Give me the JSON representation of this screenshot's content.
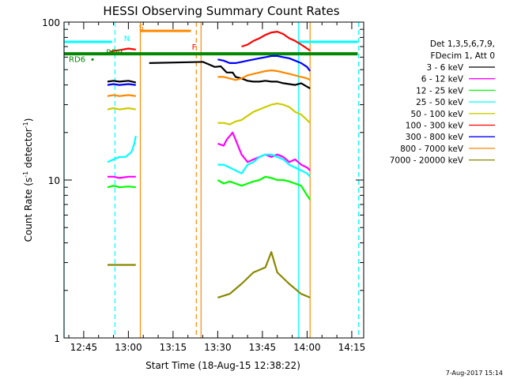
{
  "chart_data": {
    "type": "line",
    "title": "HESSI Observing Summary Count Rates",
    "xlabel": "Start Time (18-Aug-15 12:38:22)",
    "ylabel_main": "Count Rate (s",
    "ylabel_sup1": "-1",
    "ylabel_mid": " detector",
    "ylabel_sup2": "-1",
    "ylabel_end": ")",
    "yscale": "log",
    "ylim": [
      1,
      100
    ],
    "xlim_min": [
      38.4,
      139
    ],
    "x_ticks": [
      {
        "min": 45,
        "label": "12:45"
      },
      {
        "min": 60,
        "label": "13:00"
      },
      {
        "min": 75,
        "label": "13:15"
      },
      {
        "min": 90,
        "label": "13:30"
      },
      {
        "min": 105,
        "label": "13:45"
      },
      {
        "min": 120,
        "label": "14:00"
      },
      {
        "min": 135,
        "label": "14:15"
      }
    ],
    "y_ticks": [
      {
        "value": 1,
        "label": "1"
      },
      {
        "value": 10,
        "label": "10"
      },
      {
        "value": 100,
        "label": "100"
      }
    ],
    "legend_header": [
      "Det 1,3,5,6,7,9,",
      "FDecim 1, Att 0"
    ],
    "series": [
      {
        "name": "3 - 6 keV",
        "color": "#000000",
        "segments": [
          [
            [
              53,
              42
            ],
            [
              55,
              42.5
            ],
            [
              57,
              42
            ],
            [
              60,
              42.5
            ],
            [
              62.5,
              41.5
            ]
          ],
          [
            [
              67,
              55
            ],
            [
              85,
              56
            ],
            [
              87,
              54
            ],
            [
              89,
              52
            ],
            [
              91,
              52.5
            ],
            [
              93,
              48
            ],
            [
              95,
              48
            ],
            [
              96,
              45
            ],
            [
              98,
              44
            ],
            [
              100,
              42.5
            ],
            [
              102,
              42
            ],
            [
              104,
              42
            ],
            [
              106,
              42.5
            ],
            [
              108,
              42
            ],
            [
              110,
              42
            ],
            [
              112,
              41
            ],
            [
              114,
              40.5
            ],
            [
              116,
              40
            ],
            [
              118,
              41
            ],
            [
              120,
              39
            ],
            [
              121,
              38
            ]
          ]
        ]
      },
      {
        "name": "6 - 12 keV",
        "color": "#ff00ff",
        "segments": [
          [
            [
              53,
              10.5
            ],
            [
              55,
              10.5
            ],
            [
              57,
              10.3
            ],
            [
              60,
              10.5
            ],
            [
              62.5,
              10.5
            ]
          ],
          [
            [
              90,
              17
            ],
            [
              92,
              16.5
            ],
            [
              93,
              18
            ],
            [
              95,
              20
            ],
            [
              96,
              18
            ],
            [
              98,
              14.5
            ],
            [
              100,
              13
            ],
            [
              102,
              13.5
            ],
            [
              104,
              14
            ],
            [
              106,
              14.5
            ],
            [
              108,
              14
            ],
            [
              110,
              14.5
            ],
            [
              112,
              14
            ],
            [
              114,
              13
            ],
            [
              116,
              13.5
            ],
            [
              118,
              12.5
            ],
            [
              120,
              12
            ],
            [
              121,
              11.5
            ]
          ]
        ]
      },
      {
        "name": "12 - 25 keV",
        "color": "#00ff00",
        "segments": [
          [
            [
              53,
              9
            ],
            [
              55,
              9.2
            ],
            [
              57,
              9
            ],
            [
              60,
              9.1
            ],
            [
              62.5,
              9
            ]
          ],
          [
            [
              90,
              10
            ],
            [
              92,
              9.5
            ],
            [
              94,
              9.8
            ],
            [
              96,
              9.5
            ],
            [
              98,
              9.2
            ],
            [
              100,
              9.5
            ],
            [
              102,
              9.8
            ],
            [
              104,
              10
            ],
            [
              106,
              10.5
            ],
            [
              108,
              10.3
            ],
            [
              110,
              10
            ],
            [
              112,
              10
            ],
            [
              114,
              9.8
            ],
            [
              116,
              9.5
            ],
            [
              118,
              9.2
            ],
            [
              120,
              8
            ],
            [
              121,
              7.5
            ]
          ]
        ]
      },
      {
        "name": "25 - 50 keV",
        "color": "#00ffff",
        "segments": [
          [
            [
              53,
              13
            ],
            [
              55,
              13.5
            ],
            [
              57,
              14
            ],
            [
              59,
              14
            ],
            [
              61,
              15
            ],
            [
              62,
              17
            ],
            [
              62.5,
              19
            ]
          ],
          [
            [
              90,
              12.5
            ],
            [
              92,
              12.5
            ],
            [
              94,
              12
            ],
            [
              96,
              11.5
            ],
            [
              98,
              11
            ],
            [
              100,
              12.5
            ],
            [
              102,
              13
            ],
            [
              104,
              14
            ],
            [
              106,
              14.5
            ],
            [
              108,
              14.5
            ],
            [
              110,
              14
            ],
            [
              112,
              13.5
            ],
            [
              114,
              12.5
            ],
            [
              116,
              12
            ],
            [
              118,
              11.5
            ],
            [
              120,
              11
            ],
            [
              121,
              10.5
            ]
          ]
        ]
      },
      {
        "name": "50 - 100 keV",
        "color": "#cccc00",
        "segments": [
          [
            [
              53,
              28
            ],
            [
              55,
              28.5
            ],
            [
              57,
              28
            ],
            [
              60,
              28.5
            ],
            [
              62.5,
              28
            ]
          ],
          [
            [
              90,
              23
            ],
            [
              92,
              23
            ],
            [
              94,
              22.5
            ],
            [
              96,
              23.5
            ],
            [
              98,
              24
            ],
            [
              100,
              25.5
            ],
            [
              102,
              27
            ],
            [
              104,
              28
            ],
            [
              106,
              29
            ],
            [
              108,
              30
            ],
            [
              110,
              30.5
            ],
            [
              112,
              30
            ],
            [
              114,
              29
            ],
            [
              116,
              27
            ],
            [
              118,
              26
            ],
            [
              120,
              24
            ],
            [
              121,
              23
            ]
          ]
        ]
      },
      {
        "name": "100 - 300 keV",
        "color": "#ff0000",
        "segments": [
          [
            [
              54,
              65
            ],
            [
              56,
              66
            ],
            [
              58,
              67
            ],
            [
              60,
              68
            ],
            [
              62.5,
              67
            ]
          ],
          [
            [
              98,
              70
            ],
            [
              100,
              72
            ],
            [
              102,
              76
            ],
            [
              104,
              79
            ],
            [
              106,
              83
            ],
            [
              108,
              86
            ],
            [
              110,
              87
            ],
            [
              112,
              84
            ],
            [
              114,
              79
            ],
            [
              116,
              76
            ],
            [
              118,
              72
            ],
            [
              120,
              68
            ],
            [
              121,
              66
            ]
          ]
        ]
      },
      {
        "name": "300 - 800 keV",
        "color": "#0000ff",
        "segments": [
          [
            [
              53,
              40
            ],
            [
              55,
              40.5
            ],
            [
              57,
              40
            ],
            [
              60,
              40.5
            ],
            [
              62.5,
              40
            ]
          ],
          [
            [
              90,
              58
            ],
            [
              92,
              57
            ],
            [
              94,
              55
            ],
            [
              96,
              55
            ],
            [
              98,
              56
            ],
            [
              100,
              57
            ],
            [
              102,
              58
            ],
            [
              104,
              59
            ],
            [
              106,
              60
            ],
            [
              108,
              61
            ],
            [
              110,
              61
            ],
            [
              112,
              60
            ],
            [
              114,
              59
            ],
            [
              116,
              57
            ],
            [
              118,
              55
            ],
            [
              120,
              52
            ],
            [
              121,
              49
            ]
          ]
        ]
      },
      {
        "name": "800 - 7000 keV",
        "color": "#ff8800",
        "segments": [
          [
            [
              53,
              34
            ],
            [
              55,
              34.5
            ],
            [
              57,
              34
            ],
            [
              60,
              34.5
            ],
            [
              62.5,
              34
            ]
          ],
          [
            [
              90,
              45
            ],
            [
              92,
              45
            ],
            [
              94,
              44
            ],
            [
              96,
              43
            ],
            [
              98,
              44
            ],
            [
              100,
              46
            ],
            [
              102,
              47
            ],
            [
              104,
              48
            ],
            [
              106,
              49
            ],
            [
              108,
              49.5
            ],
            [
              110,
              49
            ],
            [
              112,
              48
            ],
            [
              114,
              47
            ],
            [
              116,
              46
            ],
            [
              118,
              45
            ],
            [
              120,
              44
            ],
            [
              121,
              43
            ]
          ]
        ]
      },
      {
        "name": "7000 - 20000 keV",
        "color": "#888800",
        "segments": [
          [
            [
              53,
              2.9
            ],
            [
              55,
              2.9
            ],
            [
              57,
              2.9
            ],
            [
              60,
              2.9
            ],
            [
              62.5,
              2.9
            ]
          ],
          [
            [
              90,
              1.8
            ],
            [
              94,
              1.9
            ],
            [
              98,
              2.2
            ],
            [
              102,
              2.6
            ],
            [
              106,
              2.8
            ],
            [
              108,
              3.5
            ],
            [
              110,
              2.6
            ],
            [
              114,
              2.2
            ],
            [
              118,
              1.9
            ],
            [
              121,
              1.8
            ]
          ]
        ]
      }
    ],
    "flags": [
      {
        "name": "Night",
        "label": "N",
        "color": "#00ffff",
        "y": 75,
        "spans": [
          [
            38.5,
            54.5
          ],
          [
            117,
            137
          ]
        ]
      },
      {
        "name": "SAA",
        "label": "S",
        "color": "#ff8800",
        "y": 88,
        "spans": [
          [
            64,
            81
          ]
        ]
      },
      {
        "name": "Flare",
        "label": "F",
        "color": "#ff0000",
        "y": 63,
        "spans": [
          [
            83,
            121
          ]
        ]
      },
      {
        "name": "RD9",
        "label": "RD9",
        "color": "#008800",
        "y": 63,
        "spans": [
          [
            38.5,
            137
          ]
        ]
      }
    ],
    "annotations": [
      {
        "text": "N",
        "min": 58.5,
        "value": 76,
        "color": "#00ffff"
      },
      {
        "text": "S",
        "min": 63.5,
        "value": 89,
        "color": "#ff8800"
      },
      {
        "text": "F",
        "min": 81.3,
        "value": 67,
        "color": "#ff0000"
      },
      {
        "text": "RD9",
        "min": 52.5,
        "value": 62,
        "color": "#008800"
      },
      {
        "text": "RD6",
        "min": 40,
        "value": 56,
        "color": "#008800"
      }
    ],
    "vlines": [
      {
        "min": 38.4,
        "color": "#00ffff",
        "dashed": false
      },
      {
        "min": 55.5,
        "color": "#00ffff",
        "dashed": true
      },
      {
        "min": 117.1,
        "color": "#00ffff",
        "dashed": false
      },
      {
        "min": 137.3,
        "color": "#00ffff",
        "dashed": true
      },
      {
        "min": 64.0,
        "color": "#ff8800",
        "dashed": false
      },
      {
        "min": 82.8,
        "color": "#ff8800",
        "dashed": true
      },
      {
        "min": 84.4,
        "color": "#ff8800",
        "dashed": false
      },
      {
        "min": 121.0,
        "color": "#ff8800",
        "dashed": false
      }
    ],
    "grid": false,
    "legend_position": "right"
  },
  "footer_stamp": "7-Aug-2017 15:14"
}
